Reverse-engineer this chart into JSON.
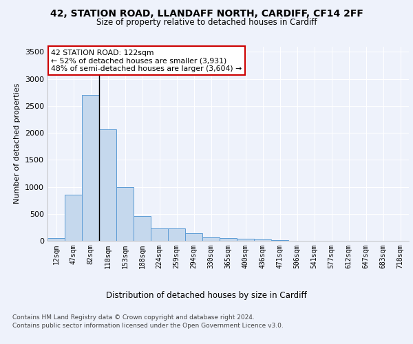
{
  "title1": "42, STATION ROAD, LLANDAFF NORTH, CARDIFF, CF14 2FF",
  "title2": "Size of property relative to detached houses in Cardiff",
  "xlabel": "Distribution of detached houses by size in Cardiff",
  "ylabel": "Number of detached properties",
  "footnote1": "Contains HM Land Registry data © Crown copyright and database right 2024.",
  "footnote2": "Contains public sector information licensed under the Open Government Licence v3.0.",
  "bar_labels": [
    "12sqm",
    "47sqm",
    "82sqm",
    "118sqm",
    "153sqm",
    "188sqm",
    "224sqm",
    "259sqm",
    "294sqm",
    "330sqm",
    "365sqm",
    "400sqm",
    "436sqm",
    "471sqm",
    "506sqm",
    "541sqm",
    "577sqm",
    "612sqm",
    "647sqm",
    "683sqm",
    "718sqm"
  ],
  "bar_values": [
    55,
    850,
    2700,
    2060,
    1000,
    460,
    225,
    225,
    135,
    65,
    55,
    35,
    20,
    10,
    5,
    2,
    1,
    0,
    0,
    0,
    0
  ],
  "bar_color": "#c5d8ed",
  "bar_edge_color": "#5b9bd5",
  "marker_label": "42 STATION ROAD: 122sqm",
  "pct_smaller": "52% of detached houses are smaller (3,931)",
  "pct_larger": "48% of semi-detached houses are larger (3,604)",
  "annotation_box_color": "#cc0000",
  "background_color": "#eef2fb",
  "ylim": [
    0,
    3600
  ],
  "grid_color": "#ffffff",
  "yticks": [
    0,
    500,
    1000,
    1500,
    2000,
    2500,
    3000,
    3500
  ]
}
